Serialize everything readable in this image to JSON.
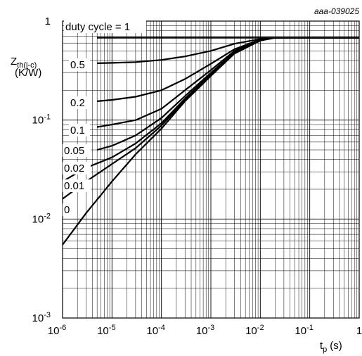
{
  "chart_data": {
    "type": "line",
    "reference_code": "aaa-039025",
    "x_axis": {
      "label_main": "t",
      "label_sub": "p",
      "label_unit": "(s)",
      "scale": "log",
      "range": [
        1e-06,
        1
      ],
      "tick_labels": [
        {
          "base": "10",
          "exp": "-6"
        },
        {
          "base": "10",
          "exp": "-5"
        },
        {
          "base": "10",
          "exp": "-4"
        },
        {
          "base": "10",
          "exp": "-3"
        },
        {
          "base": "10",
          "exp": "-2"
        },
        {
          "base": "10",
          "exp": "-1"
        },
        {
          "base": "1",
          "exp": ""
        }
      ]
    },
    "y_axis": {
      "label_main": "Z",
      "label_sub": "th(j-c)",
      "label_unit": "(K/W)",
      "scale": "log",
      "range": [
        0.001,
        1
      ],
      "tick_labels": [
        {
          "base": "1",
          "exp": ""
        },
        {
          "base": "10",
          "exp": "-1"
        },
        {
          "base": "10",
          "exp": "-2"
        },
        {
          "base": "10",
          "exp": "-3"
        }
      ]
    },
    "grid": true,
    "series": [
      {
        "name": "duty cycle = 1",
        "points": [
          [
            5e-06,
            0.68
          ],
          [
            1e-05,
            0.68
          ],
          [
            0.0001,
            0.68
          ],
          [
            0.001,
            0.68
          ],
          [
            0.01,
            0.68
          ],
          [
            0.1,
            0.68
          ],
          [
            1,
            0.68
          ]
        ]
      },
      {
        "name": "0.5",
        "points": [
          [
            5e-06,
            0.375
          ],
          [
            1e-05,
            0.378
          ],
          [
            3e-05,
            0.385
          ],
          [
            0.0001,
            0.405
          ],
          [
            0.0003,
            0.44
          ],
          [
            0.001,
            0.5
          ],
          [
            0.003,
            0.59
          ],
          [
            0.01,
            0.66
          ],
          [
            0.02,
            0.68
          ],
          [
            1,
            0.68
          ]
        ]
      },
      {
        "name": "0.2",
        "points": [
          [
            5e-06,
            0.155
          ],
          [
            1e-05,
            0.16
          ],
          [
            3e-05,
            0.172
          ],
          [
            0.0001,
            0.2
          ],
          [
            0.0003,
            0.26
          ],
          [
            0.001,
            0.37
          ],
          [
            0.003,
            0.52
          ],
          [
            0.01,
            0.65
          ],
          [
            0.02,
            0.68
          ],
          [
            1,
            0.68
          ]
        ]
      },
      {
        "name": "0.1",
        "points": [
          [
            5e-06,
            0.085
          ],
          [
            1e-05,
            0.09
          ],
          [
            3e-05,
            0.1
          ],
          [
            0.0001,
            0.13
          ],
          [
            0.0003,
            0.2
          ],
          [
            0.001,
            0.32
          ],
          [
            0.003,
            0.5
          ],
          [
            0.01,
            0.64
          ],
          [
            0.02,
            0.68
          ],
          [
            1,
            0.68
          ]
        ]
      },
      {
        "name": "0.05",
        "points": [
          [
            5e-06,
            0.05
          ],
          [
            1e-05,
            0.055
          ],
          [
            3e-05,
            0.07
          ],
          [
            0.0001,
            0.105
          ],
          [
            0.0003,
            0.175
          ],
          [
            0.001,
            0.3
          ],
          [
            0.003,
            0.49
          ],
          [
            0.01,
            0.64
          ],
          [
            0.02,
            0.68
          ],
          [
            1,
            0.68
          ]
        ]
      },
      {
        "name": "0.02",
        "points": [
          [
            1e-06,
            0.024
          ],
          [
            3e-06,
            0.033
          ],
          [
            1e-05,
            0.042
          ],
          [
            3e-05,
            0.058
          ],
          [
            0.0001,
            0.093
          ],
          [
            0.0003,
            0.165
          ],
          [
            0.001,
            0.29
          ],
          [
            0.003,
            0.48
          ],
          [
            0.01,
            0.64
          ],
          [
            0.02,
            0.68
          ],
          [
            1,
            0.68
          ]
        ]
      },
      {
        "name": "0.01",
        "points": [
          [
            1e-06,
            0.016
          ],
          [
            3e-06,
            0.024
          ],
          [
            1e-05,
            0.036
          ],
          [
            3e-05,
            0.052
          ],
          [
            0.0001,
            0.088
          ],
          [
            0.0003,
            0.16
          ],
          [
            0.001,
            0.285
          ],
          [
            0.003,
            0.475
          ],
          [
            0.01,
            0.635
          ],
          [
            0.02,
            0.68
          ],
          [
            1,
            0.68
          ]
        ]
      },
      {
        "name": "0",
        "points": [
          [
            1e-06,
            0.0055
          ],
          [
            3e-06,
            0.0115
          ],
          [
            1e-05,
            0.024
          ],
          [
            3e-05,
            0.045
          ],
          [
            0.0001,
            0.082
          ],
          [
            0.0003,
            0.155
          ],
          [
            0.001,
            0.28
          ],
          [
            0.003,
            0.47
          ],
          [
            0.01,
            0.635
          ],
          [
            0.02,
            0.68
          ],
          [
            1,
            0.68
          ]
        ]
      }
    ],
    "curve_labels": [
      {
        "text": "duty cycle = 1"
      },
      {
        "text": "0.5"
      },
      {
        "text": "0.2"
      },
      {
        "text": "0.1"
      },
      {
        "text": "0.05"
      },
      {
        "text": "0.02"
      },
      {
        "text": "0.01"
      },
      {
        "text": "0"
      }
    ]
  }
}
